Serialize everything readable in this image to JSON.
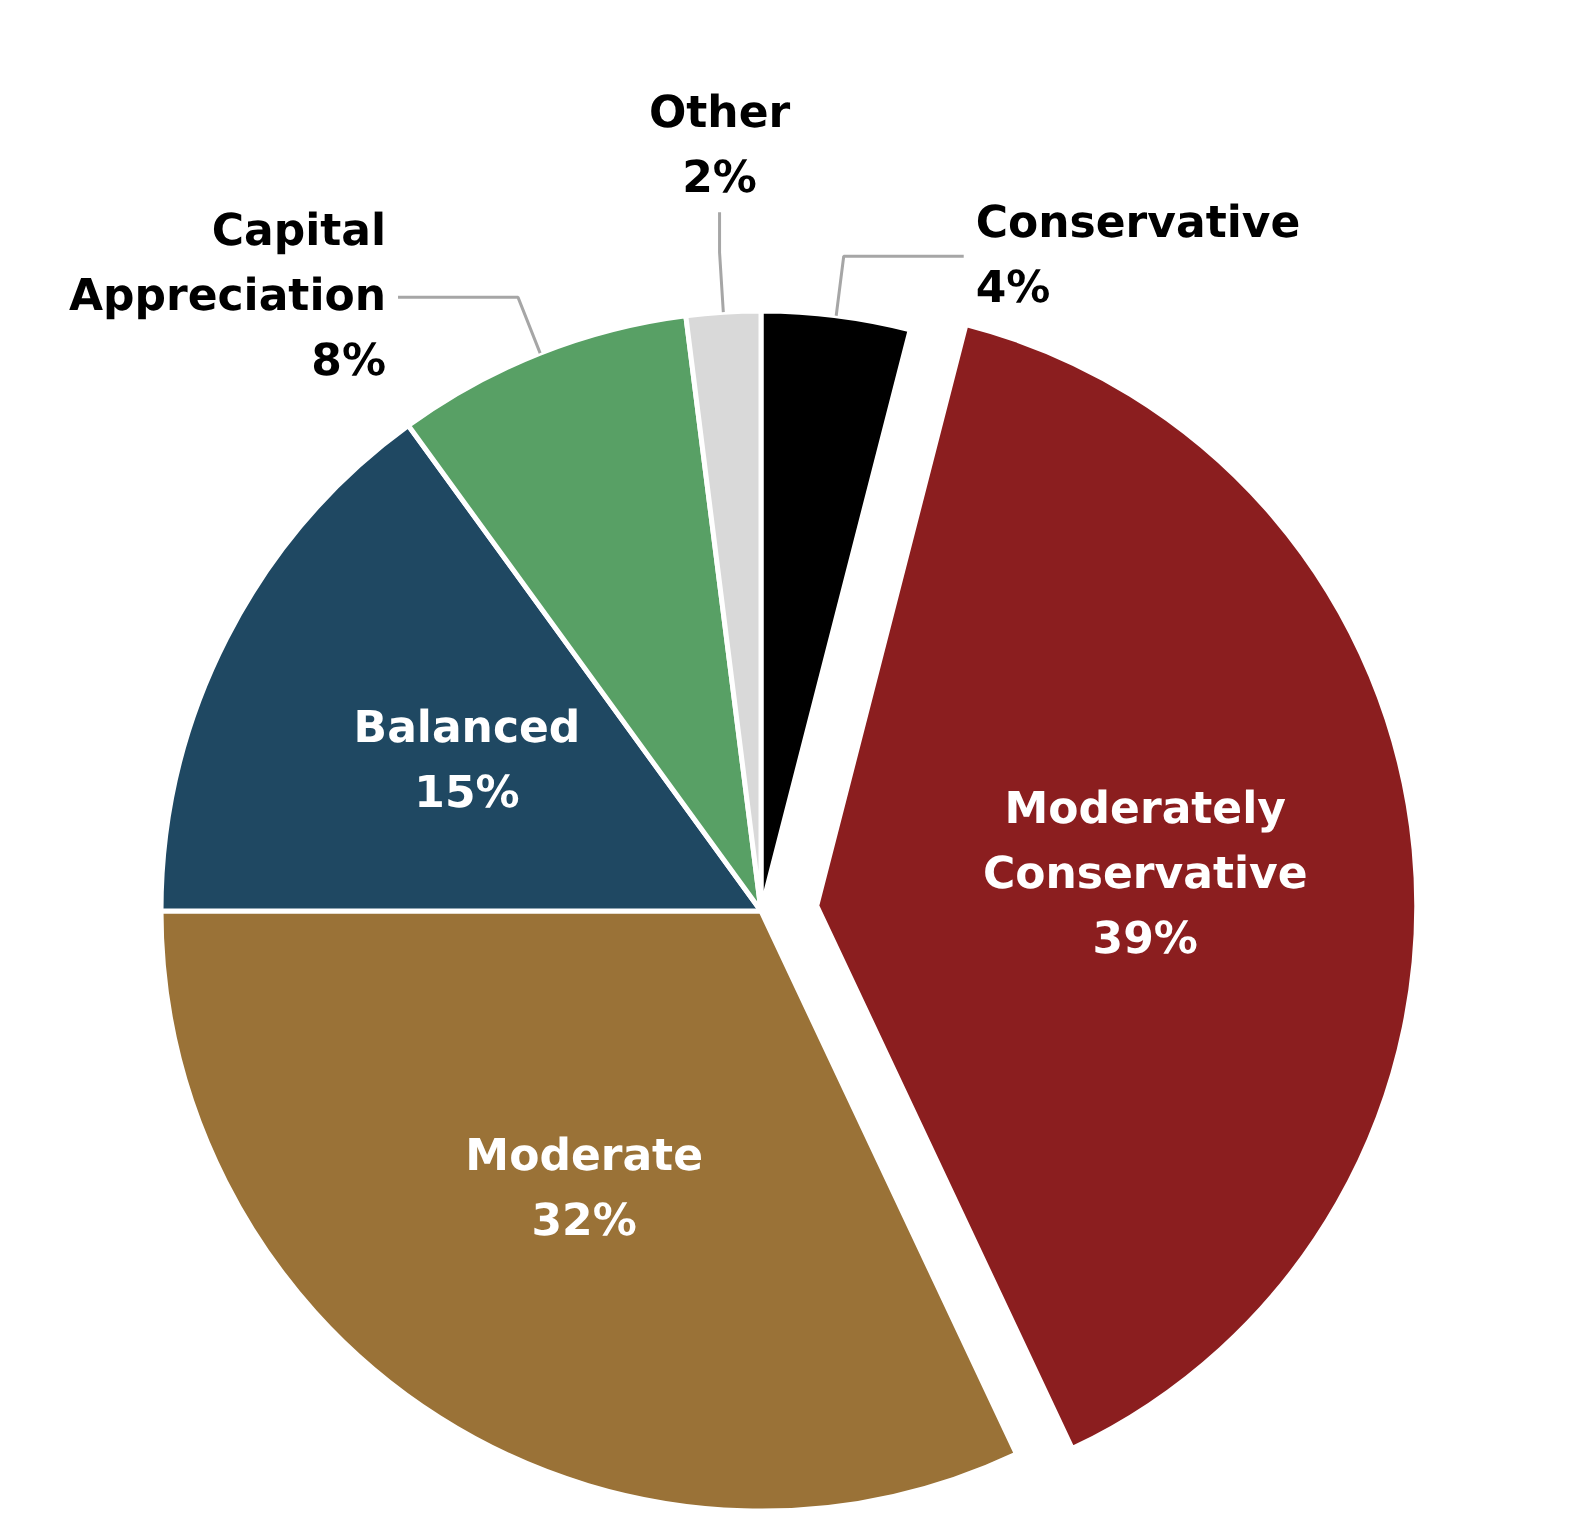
{
  "chart_data": {
    "type": "pie",
    "categories": [
      "Conservative",
      "Moderately Conservative",
      "Moderate",
      "Balanced",
      "Capital Appreciation",
      "Other"
    ],
    "values": [
      4,
      39,
      32,
      15,
      8,
      2
    ],
    "colors": [
      "#000000",
      "#8b1e1f",
      "#9a7237",
      "#1f4862",
      "#58a065",
      "#d9d9d9"
    ],
    "value_labels": [
      "4%",
      "39%",
      "32%",
      "15%",
      "8%",
      "2%"
    ]
  }
}
